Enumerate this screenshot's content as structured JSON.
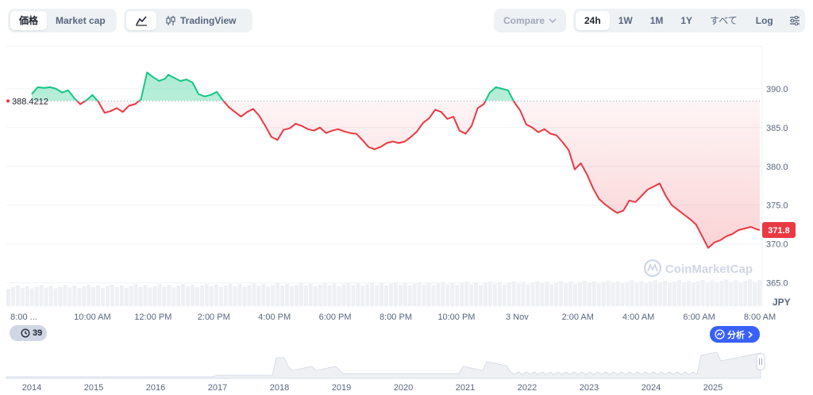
{
  "toolbar": {
    "price_tab": "価格",
    "market_cap_tab": "Market cap",
    "line_icon": "line-chart-icon",
    "tradingview_icon": "candlestick-icon",
    "tradingview_label": "TradingView",
    "compare_label": "Compare",
    "ranges": [
      "24h",
      "1W",
      "1M",
      "1Y",
      "すべて"
    ],
    "active_range": "24h",
    "log_label": "Log",
    "settings_icon": "sliders-icon"
  },
  "colors": {
    "up": "#16c784",
    "down": "#ea3943",
    "last_price_tag": "#ea3943",
    "axis_text": "#58667e",
    "grid": "#eff2f5"
  },
  "watermark": "CoinMarketCap",
  "events_badge": {
    "icon": "clock-icon",
    "count": "39"
  },
  "analysis_badge": {
    "icon": "analysis-icon",
    "label": "分析"
  },
  "chart_data": {
    "type": "line",
    "open_price": 388.4212,
    "open_price_label": "388.4212",
    "last_price_label": "371.8",
    "y_axis_unit": "JPY",
    "y_ticks": [
      390.0,
      385.0,
      380.0,
      375.0,
      370.0,
      365.0
    ],
    "y_tick_labels": [
      "390.0",
      "385.0",
      "380.0",
      "375.0",
      "370.0",
      "365.0"
    ],
    "ylim": [
      362.0,
      395.5
    ],
    "x_tick_labels": [
      "8:00 ...",
      "10:00 AM",
      "12:00 PM",
      "2:00 PM",
      "4:00 PM",
      "6:00 PM",
      "8:00 PM",
      "10:00 PM",
      "3 Nov",
      "2:00 AM",
      "4:00 AM",
      "6:00 AM",
      "8:00 AM"
    ],
    "xlim_hours": [
      0,
      24
    ],
    "series": [
      {
        "x_hours": [
          0,
          0.2,
          0.4,
          0.6,
          0.8,
          1.0,
          1.2,
          1.4,
          1.6,
          1.8,
          2.0,
          2.2,
          2.4,
          2.6,
          2.8,
          3.0,
          3.2,
          3.4,
          3.6,
          3.8,
          4.0,
          4.2,
          4.4,
          4.5,
          4.7,
          4.9,
          5.1,
          5.3,
          5.5,
          5.7,
          5.9,
          6.1,
          6.3,
          6.5,
          6.7,
          6.9,
          7.1,
          7.3,
          7.5,
          7.7,
          7.9,
          8.1,
          8.3,
          8.5,
          8.7,
          8.9,
          9.1,
          9.3,
          9.5,
          9.7,
          9.9,
          10.1,
          10.3,
          10.5,
          10.7,
          10.9,
          11.1,
          11.3,
          11.5,
          11.7,
          11.9,
          12.1,
          12.3,
          12.5,
          12.7,
          12.9,
          13.1,
          13.3,
          13.5,
          13.7,
          13.9,
          14.1,
          14.3,
          14.5,
          14.7,
          14.9,
          15.1,
          15.3,
          15.5,
          15.7,
          15.9,
          16.1,
          16.3,
          16.5,
          16.7,
          16.9,
          17.1,
          17.3,
          17.5,
          17.7,
          17.9,
          18.1,
          18.3,
          18.5,
          18.7,
          18.9,
          19.1,
          19.3,
          19.5,
          19.7,
          19.9,
          20.1,
          20.3,
          20.5,
          20.7,
          20.9,
          21.1,
          21.3,
          21.5,
          21.7,
          21.9,
          22.1,
          22.3,
          22.5,
          22.7,
          22.9,
          23.1,
          23.3,
          23.5,
          23.7,
          23.9,
          24.0
        ],
        "values": [
          389.3,
          390.2,
          390.1,
          390.2,
          390.0,
          389.5,
          389.8,
          388.8,
          388.0,
          388.5,
          389.2,
          388.3,
          386.9,
          387.1,
          387.5,
          387.0,
          387.8,
          388.0,
          388.6,
          392.1,
          391.5,
          391.0,
          391.3,
          391.8,
          391.4,
          391.0,
          391.2,
          390.8,
          389.3,
          389.0,
          389.2,
          389.6,
          388.5,
          387.6,
          387.0,
          386.4,
          387.0,
          387.4,
          386.5,
          385.2,
          383.8,
          383.4,
          384.7,
          384.9,
          385.5,
          385.2,
          384.8,
          384.6,
          385.0,
          384.3,
          384.6,
          384.8,
          384.5,
          384.3,
          384.2,
          383.4,
          382.5,
          382.2,
          382.5,
          383.0,
          383.2,
          383.0,
          383.2,
          383.8,
          384.5,
          385.6,
          386.2,
          387.3,
          387.0,
          386.1,
          386.4,
          384.6,
          384.2,
          385.2,
          387.5,
          388.0,
          389.5,
          390.2,
          390.0,
          389.8,
          388.3,
          387.2,
          385.4,
          385.0,
          384.4,
          384.8,
          384.2,
          384.0,
          383.1,
          382.1,
          379.6,
          380.4,
          379.0,
          377.2,
          375.8,
          375.1,
          374.5,
          374.0,
          374.3,
          375.6,
          375.4,
          376.2,
          377.0,
          377.4,
          377.8,
          376.2,
          375.0,
          374.4,
          373.8,
          373.2,
          372.5,
          371.0,
          369.5,
          370.2,
          370.5,
          371.0,
          371.3,
          371.8,
          372.0,
          372.2,
          371.9,
          371.8
        ]
      }
    ],
    "volume_note": "",
    "history_x_labels": [
      "2014",
      "2015",
      "2016",
      "2017",
      "2018",
      "2019",
      "2020",
      "2021",
      "2022",
      "2023",
      "2024",
      "2025"
    ]
  }
}
